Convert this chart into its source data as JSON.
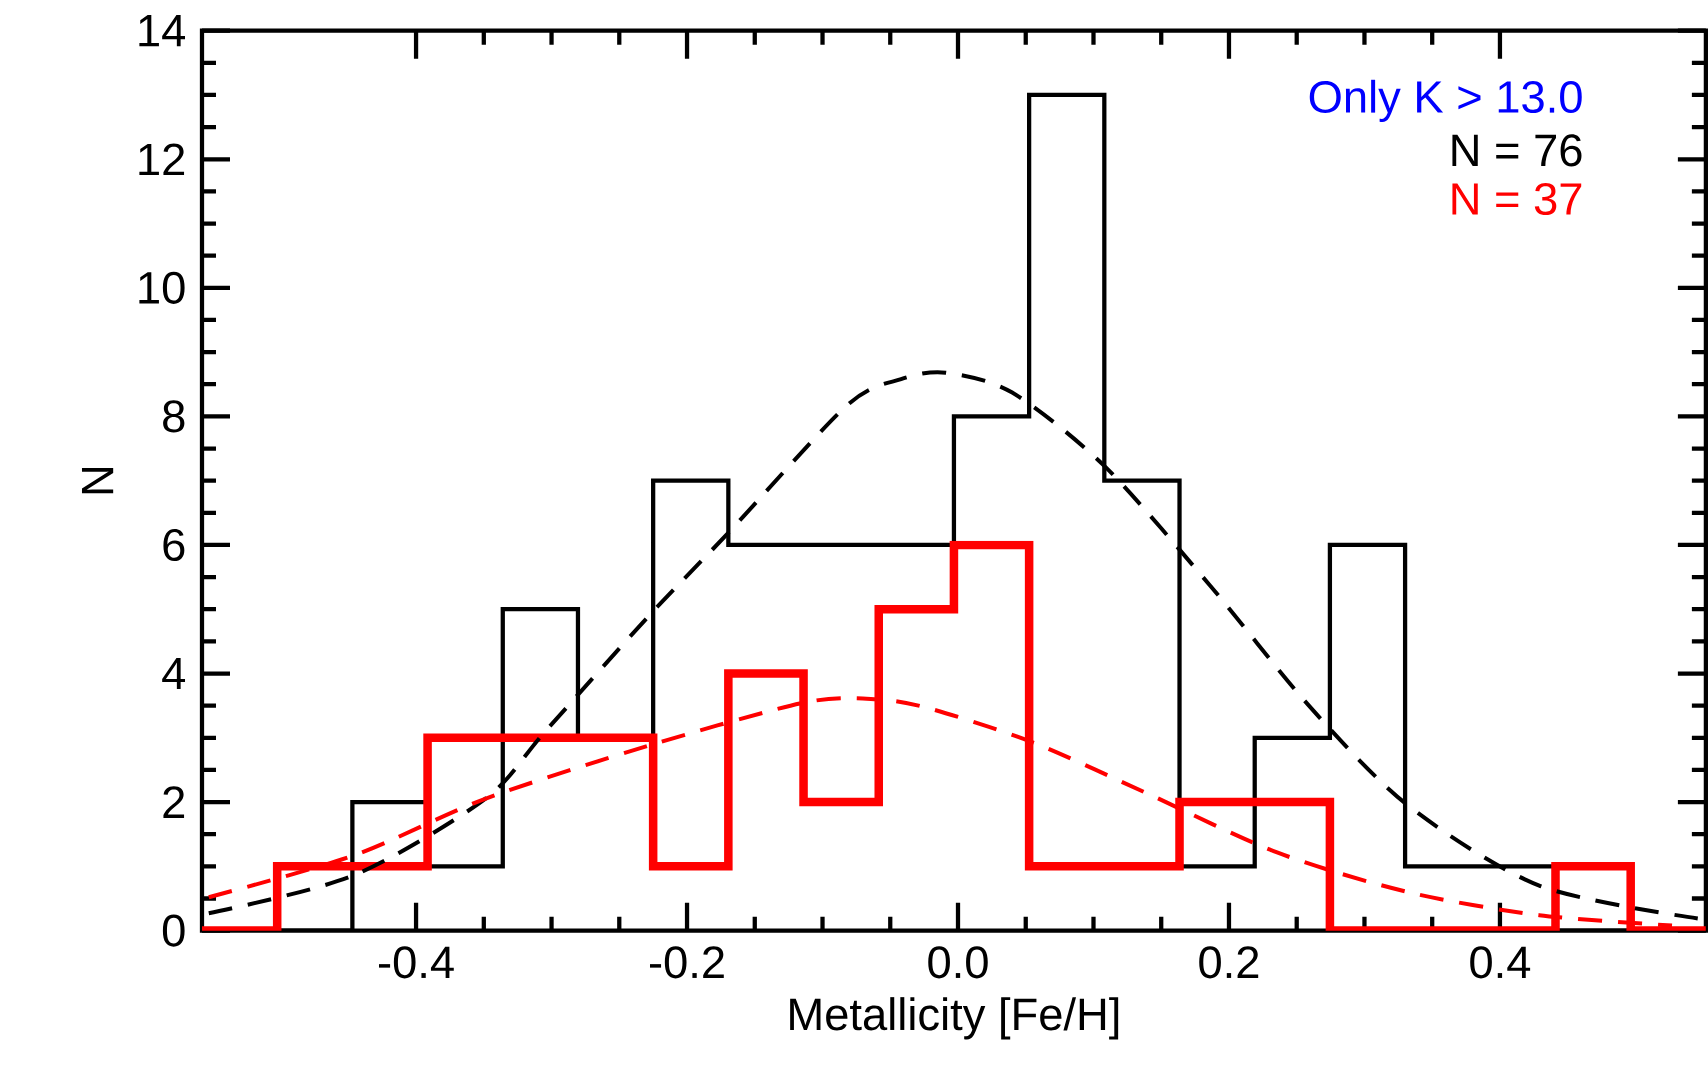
{
  "chart_data": {
    "type": "histogram",
    "xlabel": "Metallicity [Fe/H]",
    "ylabel": "N",
    "bins": [
      -0.558,
      -0.5025,
      -0.447,
      -0.3915,
      -0.336,
      -0.2805,
      -0.225,
      -0.1695,
      -0.114,
      -0.0585,
      -0.003,
      0.0525,
      0.108,
      0.1635,
      0.219,
      0.2745,
      0.33,
      0.3855,
      0.441,
      0.4965,
      0.552
    ],
    "series": [
      {
        "color": "#000000",
        "values": [
          0,
          0,
          2,
          1,
          5,
          3,
          7,
          6,
          6,
          6,
          8,
          13,
          7,
          1,
          3,
          6,
          1,
          1,
          0,
          0
        ]
      },
      {
        "color": "#ff0000",
        "values": [
          0,
          1,
          1,
          3,
          3,
          3,
          1,
          4,
          2,
          5,
          6,
          1,
          1,
          2,
          2,
          0,
          0,
          0,
          1,
          0
        ]
      },
      {
        "type": "line",
        "line_style": "dashed",
        "color": "#000000",
        "x": [
          -0.553,
          -0.446,
          -0.349,
          -0.305,
          -0.228,
          -0.169,
          -0.082,
          -0.042,
          -0.009,
          0.04,
          0.108,
          0.186,
          0.259,
          0.332,
          0.429,
          0.546
        ],
        "values": [
          0.27,
          0.86,
          2.05,
          3.09,
          4.9,
          6.2,
          8.17,
          8.58,
          8.68,
          8.37,
          7.23,
          5.37,
          3.5,
          1.95,
          0.7,
          0.19
        ]
      },
      {
        "type": "line",
        "line_style": "dashed",
        "color": "#ff0000",
        "x": [
          -0.553,
          -0.446,
          -0.349,
          -0.228,
          -0.113,
          -0.06,
          -0.02,
          0.055,
          0.137,
          0.235,
          0.332,
          0.429,
          0.527
        ],
        "values": [
          0.52,
          1.17,
          2.05,
          2.88,
          3.55,
          3.6,
          3.45,
          2.93,
          2.16,
          1.22,
          0.6,
          0.24,
          0.08
        ]
      }
    ],
    "annotations": [
      "Only K > 13.0",
      "N = 76",
      "N = 37"
    ],
    "xlim": [
      -0.558,
      0.552
    ],
    "xticks": [
      -0.4,
      -0.2,
      {
        "value": 0.0,
        "label": "0.0"
      },
      0.2,
      0.4
    ],
    "ylim": [
      0,
      14
    ],
    "yticks": [
      0,
      2,
      4,
      6,
      8,
      10,
      12,
      14
    ]
  }
}
